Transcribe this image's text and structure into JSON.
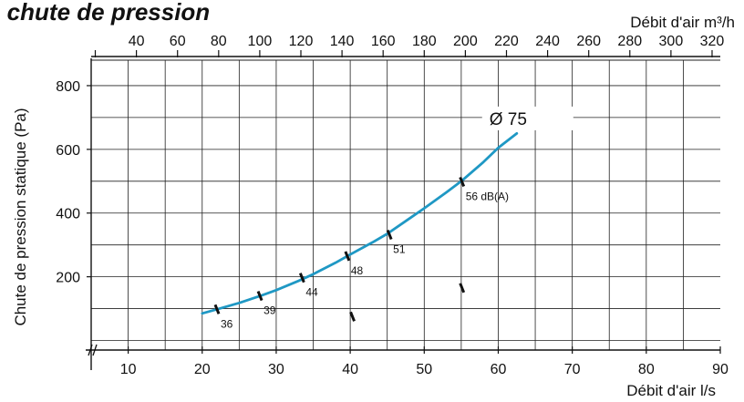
{
  "chart_data": {
    "type": "line",
    "title": "a chute de pression",
    "xlabel": "Débit d'air  l/s",
    "x2label": "Débit d'air  m³/h",
    "ylabel": "Chute de pression statique (Pa)",
    "xlim": [
      5,
      90
    ],
    "ylim": [
      -30,
      880
    ],
    "x_ticks": [
      10,
      20,
      30,
      40,
      50,
      60,
      70,
      80,
      90
    ],
    "x2_ticks": [
      40,
      60,
      80,
      100,
      120,
      140,
      160,
      180,
      200,
      220,
      240,
      260,
      280,
      300,
      320
    ],
    "y_ticks": [
      200,
      400,
      600,
      800
    ],
    "grid": true,
    "series": [
      {
        "name": "Ø 75",
        "color": "#1f98c4",
        "x": [
          20,
          22,
          25,
          28,
          30,
          33,
          35,
          38,
          40,
          43,
          45,
          48,
          50,
          53,
          55,
          58,
          60,
          62.5
        ],
        "y": [
          85,
          98,
          118,
          141,
          158,
          187,
          208,
          244,
          270,
          308,
          335,
          383,
          415,
          465,
          500,
          560,
          605,
          650
        ]
      }
    ],
    "noise_markers": [
      {
        "x": 22,
        "y": 98,
        "label": "36"
      },
      {
        "x": 27.8,
        "y": 140,
        "label": "39"
      },
      {
        "x": 33.5,
        "y": 197,
        "label": "44"
      },
      {
        "x": 39.6,
        "y": 265,
        "label": "48"
      },
      {
        "x": 45.3,
        "y": 332,
        "label": "51"
      },
      {
        "x": 55.1,
        "y": 498,
        "label": "56 dB(A)"
      }
    ],
    "stray_marks": [
      {
        "x": 40.3,
        "y": 75
      },
      {
        "x": 55.1,
        "y": 165
      }
    ]
  }
}
